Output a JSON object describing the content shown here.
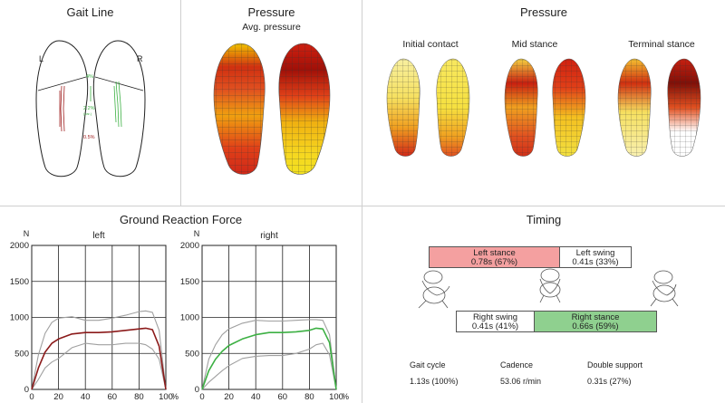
{
  "gait_line": {
    "title": "Gait Line",
    "left_label": "L",
    "right_label": "R",
    "anno_top": "4%",
    "anno_mid": "2.2%",
    "anno_mid_sub": "(var.)",
    "anno_bottom": "0.5%"
  },
  "pressure_avg": {
    "title": "Pressure",
    "subtitle": "Avg. pressure"
  },
  "pressure_phases": {
    "title": "Pressure",
    "phases": [
      "Initial contact",
      "Mid stance",
      "Terminal stance"
    ]
  },
  "colors": {
    "left_series": "#8b1a1a",
    "right_series": "#3cb043",
    "variance": "#a0a0a0",
    "left_stance_fill": "#f4a0a0",
    "right_stance_fill": "#8fd08f",
    "panel_border": "#cfcfcf"
  },
  "grf": {
    "title": "Ground Reaction Force",
    "unit_y": "N",
    "unit_x": "%"
  },
  "chart_data": [
    {
      "type": "line",
      "title": "left",
      "ylabel": "N",
      "xlabel": "%",
      "xlim": [
        0,
        100
      ],
      "ylim": [
        0,
        2000
      ],
      "xticks": [
        0,
        20,
        40,
        60,
        80,
        100
      ],
      "yticks": [
        0,
        500,
        1000,
        1500,
        2000
      ],
      "grid": true,
      "x": [
        0,
        5,
        10,
        15,
        20,
        30,
        40,
        50,
        60,
        70,
        80,
        85,
        90,
        95,
        100
      ],
      "series": [
        {
          "values": [
            0,
            300,
            520,
            640,
            700,
            770,
            790,
            790,
            800,
            820,
            840,
            850,
            830,
            600,
            0
          ]
        },
        {
          "values": [
            0,
            480,
            780,
            930,
            990,
            1010,
            960,
            960,
            990,
            1030,
            1080,
            1090,
            1070,
            820,
            0
          ]
        },
        {
          "values": [
            0,
            140,
            300,
            380,
            430,
            580,
            640,
            620,
            620,
            640,
            640,
            620,
            560,
            420,
            0
          ]
        }
      ]
    },
    {
      "type": "line",
      "title": "right",
      "ylabel": "N",
      "xlabel": "%",
      "xlim": [
        0,
        100
      ],
      "ylim": [
        0,
        2000
      ],
      "xticks": [
        0,
        20,
        40,
        60,
        80,
        100
      ],
      "yticks": [
        0,
        500,
        1000,
        1500,
        2000
      ],
      "grid": true,
      "x": [
        0,
        5,
        10,
        15,
        20,
        30,
        40,
        50,
        60,
        70,
        80,
        85,
        90,
        95,
        100
      ],
      "series": [
        {
          "values": [
            0,
            260,
            420,
            530,
            610,
            700,
            760,
            790,
            790,
            800,
            820,
            850,
            840,
            650,
            0
          ]
        },
        {
          "values": [
            0,
            420,
            620,
            760,
            840,
            920,
            960,
            950,
            950,
            960,
            970,
            970,
            960,
            760,
            0
          ]
        },
        {
          "values": [
            0,
            100,
            180,
            260,
            330,
            430,
            460,
            470,
            470,
            500,
            560,
            620,
            640,
            480,
            0
          ]
        }
      ]
    }
  ],
  "timing": {
    "title": "Timing",
    "left_stance_label": "Left stance",
    "left_stance_value": "0.78s (67%)",
    "left_stance_pct": 67,
    "left_swing_label": "Left swing",
    "left_swing_value": "0.41s (33%)",
    "right_swing_label": "Right swing",
    "right_swing_value": "0.41s (41%)",
    "right_stance_label": "Right stance",
    "right_stance_value": "0.66s (59%)",
    "right_stance_pct": 59,
    "stats": [
      {
        "label": "Gait cycle",
        "value": "1.13s (100%)"
      },
      {
        "label": "Cadence",
        "value": "53.06 r/min"
      },
      {
        "label": "Double support",
        "value": "0.31s (27%)"
      }
    ]
  }
}
